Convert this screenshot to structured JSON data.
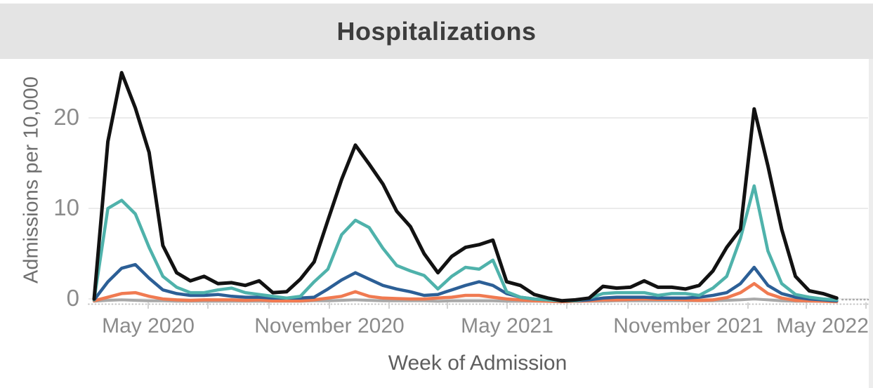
{
  "title": "Hospitalizations",
  "y_axis": {
    "title": "Admissions per 10,000",
    "tick_labels": [
      "0",
      "10",
      "20"
    ]
  },
  "x_axis": {
    "title": "Week of Admission",
    "tick_labels": [
      "May 2020",
      "November 2020",
      "May 2021",
      "November 2021",
      "May 2022"
    ]
  },
  "colors": {
    "background": "#ffffff",
    "header_band": "#e4e4e4",
    "grid": "#ebebeb",
    "dotted_baseline": "#c4c4c4",
    "tick_mark": "#d2d2d2",
    "series_black": "#121212",
    "series_teal": "#4fb2ab",
    "series_blue": "#2c5f96",
    "series_orange": "#f07a51",
    "series_gray": "#a8a8a8"
  },
  "chart_data": {
    "type": "line",
    "title": "Hospitalizations",
    "xlabel": "Week of Admission",
    "ylabel": "Admissions per 10,000",
    "x_tick_labels": [
      "May 2020",
      "November 2020",
      "May 2021",
      "November 2021",
      "May 2022"
    ],
    "y_ticks": [
      0,
      10,
      20
    ],
    "ylim": [
      -1,
      26
    ],
    "grid": "horizontal",
    "legend": "none",
    "x": [
      "2020-03-07",
      "2020-03-21",
      "2020-04-04",
      "2020-04-18",
      "2020-05-02",
      "2020-05-16",
      "2020-05-30",
      "2020-06-13",
      "2020-06-27",
      "2020-07-11",
      "2020-07-25",
      "2020-08-08",
      "2020-08-22",
      "2020-09-05",
      "2020-09-19",
      "2020-10-03",
      "2020-10-17",
      "2020-10-31",
      "2020-11-14",
      "2020-11-28",
      "2020-12-12",
      "2020-12-26",
      "2021-01-09",
      "2021-01-23",
      "2021-02-06",
      "2021-02-20",
      "2021-03-06",
      "2021-03-20",
      "2021-04-03",
      "2021-04-17",
      "2021-05-01",
      "2021-05-15",
      "2021-05-29",
      "2021-06-12",
      "2021-06-26",
      "2021-07-10",
      "2021-07-24",
      "2021-08-07",
      "2021-08-21",
      "2021-09-04",
      "2021-09-18",
      "2021-10-02",
      "2021-10-16",
      "2021-10-30",
      "2021-11-13",
      "2021-11-27",
      "2021-12-11",
      "2021-12-25",
      "2022-01-08",
      "2022-01-22",
      "2022-02-05",
      "2022-02-19",
      "2022-03-05",
      "2022-03-19",
      "2022-04-02"
    ],
    "series": [
      {
        "name": "black",
        "color": "#121212",
        "values": [
          0.3,
          17.7,
          25.3,
          21.4,
          16.5,
          6.2,
          3.2,
          2.3,
          2.8,
          2.0,
          2.1,
          1.8,
          2.3,
          1.0,
          1.1,
          2.5,
          4.4,
          9.0,
          13.5,
          17.3,
          15.2,
          13.0,
          10.0,
          8.3,
          5.3,
          3.2,
          5.0,
          6.0,
          6.3,
          6.8,
          2.2,
          1.8,
          0.8,
          0.4,
          0.1,
          0.2,
          0.4,
          1.7,
          1.5,
          1.6,
          2.3,
          1.6,
          1.6,
          1.4,
          1.8,
          3.4,
          6.0,
          8.0,
          21.3,
          15.0,
          8.0,
          2.8,
          1.2,
          0.9,
          0.4
        ]
      },
      {
        "name": "teal",
        "color": "#4fb2ab",
        "values": [
          0.2,
          10.3,
          11.2,
          9.7,
          6.0,
          2.8,
          1.6,
          1.0,
          1.0,
          1.3,
          1.5,
          1.0,
          0.8,
          0.6,
          0.4,
          0.6,
          2.2,
          3.6,
          7.4,
          9.0,
          8.2,
          5.9,
          4.0,
          3.4,
          2.9,
          1.4,
          2.8,
          3.8,
          3.6,
          4.6,
          1.1,
          0.5,
          0.3,
          0.2,
          0.1,
          0.1,
          0.4,
          0.9,
          1.0,
          1.0,
          1.0,
          0.7,
          0.9,
          0.9,
          0.7,
          1.5,
          2.8,
          7.0,
          12.8,
          5.6,
          2.0,
          0.8,
          0.5,
          0.3,
          0.2
        ]
      },
      {
        "name": "blue",
        "color": "#2c5f96",
        "values": [
          0.2,
          2.2,
          3.7,
          4.1,
          2.6,
          1.3,
          0.9,
          0.7,
          0.7,
          0.8,
          0.6,
          0.5,
          0.5,
          0.4,
          0.4,
          0.4,
          0.5,
          1.4,
          2.4,
          3.2,
          2.5,
          1.8,
          1.4,
          1.1,
          0.7,
          0.8,
          1.3,
          1.8,
          2.2,
          1.8,
          0.9,
          0.5,
          0.3,
          0.2,
          0.1,
          0.1,
          0.2,
          0.4,
          0.5,
          0.5,
          0.5,
          0.4,
          0.4,
          0.4,
          0.5,
          0.7,
          1.0,
          2.0,
          3.8,
          1.8,
          0.9,
          0.5,
          0.3,
          0.2,
          0.1
        ]
      },
      {
        "name": "orange",
        "color": "#f07a51",
        "values": [
          0.1,
          0.5,
          0.9,
          1.0,
          0.6,
          0.3,
          0.2,
          0.15,
          0.2,
          0.2,
          0.2,
          0.15,
          0.2,
          0.1,
          0.1,
          0.1,
          0.2,
          0.4,
          0.6,
          1.1,
          0.6,
          0.4,
          0.35,
          0.3,
          0.3,
          0.4,
          0.5,
          0.7,
          0.7,
          0.5,
          0.3,
          0.2,
          0.1,
          0.05,
          0.0,
          0.05,
          0.1,
          0.2,
          0.2,
          0.25,
          0.3,
          0.25,
          0.25,
          0.2,
          0.15,
          0.2,
          0.45,
          1.0,
          2.0,
          0.9,
          0.4,
          0.15,
          0.1,
          0.05,
          0.0
        ]
      },
      {
        "name": "gray",
        "color": "#a8a8a8",
        "values": [
          0.05,
          0.15,
          0.2,
          0.15,
          0.1,
          0.1,
          0.05,
          0.05,
          0.05,
          0.05,
          0.05,
          0.05,
          0.05,
          0.05,
          0.05,
          0.05,
          0.1,
          0.1,
          0.15,
          0.2,
          0.15,
          0.1,
          0.1,
          0.1,
          0.1,
          0.05,
          0.1,
          0.1,
          0.1,
          0.1,
          0.05,
          0.05,
          0.05,
          0.05,
          0.0,
          0.05,
          0.05,
          0.05,
          0.1,
          0.1,
          0.1,
          0.1,
          0.1,
          0.1,
          0.1,
          0.1,
          0.15,
          0.2,
          0.3,
          0.2,
          0.1,
          0.05,
          0.05,
          0.05,
          0.05
        ]
      }
    ]
  }
}
